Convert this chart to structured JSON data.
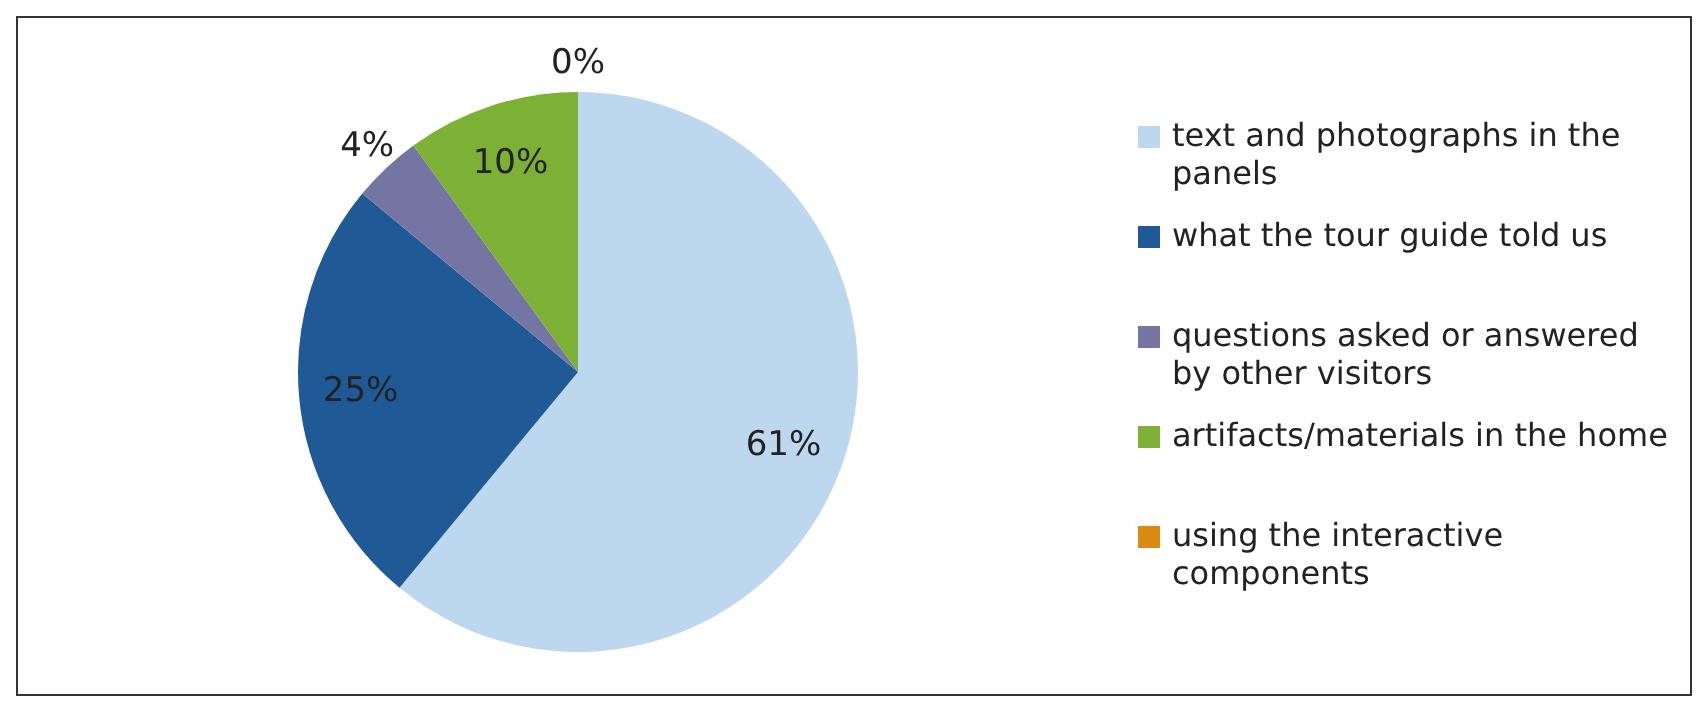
{
  "chart_data": {
    "type": "pie",
    "categories": [
      "text and photographs in the panels",
      "what the tour guide told us",
      "questions asked or answered by other visitors",
      "artifacts/materials in the home",
      "using the interactive components"
    ],
    "values": [
      61,
      25,
      4,
      10,
      0
    ],
    "colors": [
      "#bdd7ee",
      "#1f5a96",
      "#7575a3",
      "#7db135",
      "#d98a10"
    ],
    "value_labels": [
      "61%",
      "25%",
      "4%",
      "10%",
      "0%"
    ],
    "legend": "right"
  }
}
